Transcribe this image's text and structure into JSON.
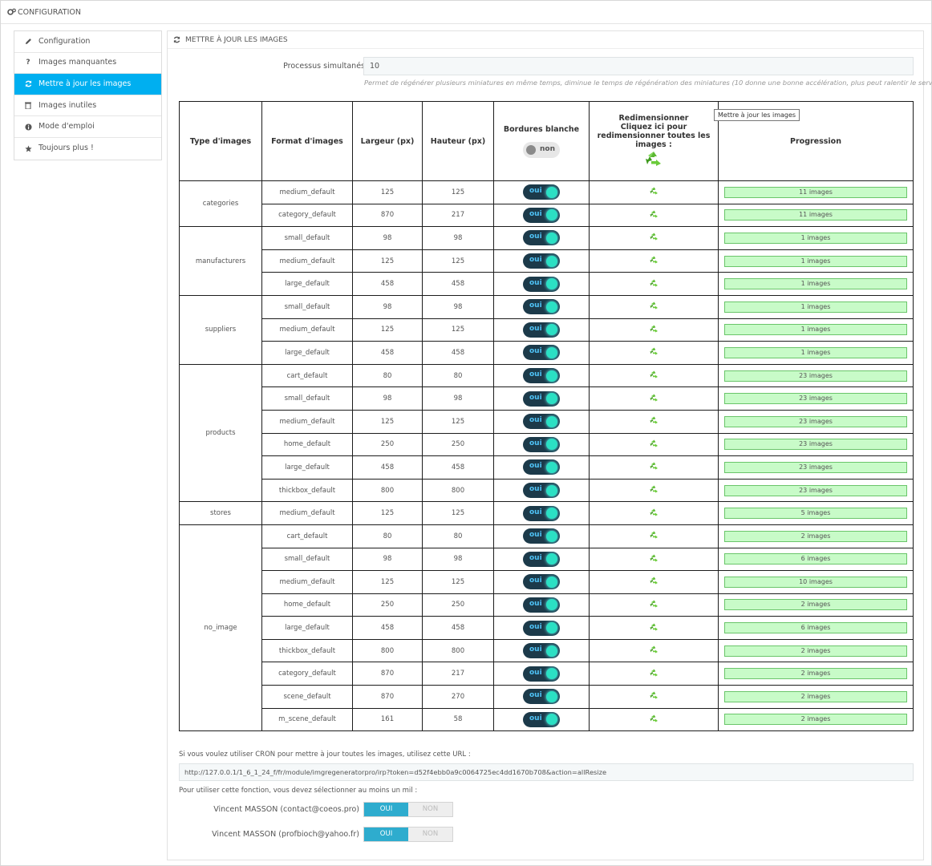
{
  "header": {
    "title": "CONFIGURATION",
    "icon": "gears-icon"
  },
  "sidebar": {
    "items": [
      {
        "label": "Configuration",
        "icon": "pencil-icon",
        "active": false
      },
      {
        "label": "Images manquantes",
        "icon": "question-icon",
        "active": false
      },
      {
        "label": "Mettre à jour les images",
        "icon": "refresh-icon",
        "active": true
      },
      {
        "label": "Images inutiles",
        "icon": "trash-icon",
        "active": false
      },
      {
        "label": "Mode d'emploi",
        "icon": "info-icon",
        "active": false
      },
      {
        "label": "Toujours plus !",
        "icon": "star-icon",
        "active": false
      }
    ]
  },
  "panel": {
    "title": "METTRE À JOUR LES IMAGES",
    "process_label": "Processus simultanés",
    "process_value": "10",
    "process_help": "Permet de régénérer plusieurs miniatures en même temps, diminue le temps de régénération des miniatures (10 donne une bonne accélération, plus peut ralentir le serveur)"
  },
  "table": {
    "headers": {
      "type": "Type d'images",
      "format": "Format d'images",
      "width": "Largeur (px)",
      "height": "Hauteur (px)",
      "borders": "Bordures blanche",
      "resize_line1": "Redimensionner",
      "resize_line2": "Cliquez ici pour redimensionner toutes les images :",
      "progress": "Progression"
    },
    "header_toggle": "non",
    "toggle_on": "oui",
    "tooltip": "Mettre à jour les images",
    "groups": [
      {
        "type": "categories",
        "rows": [
          {
            "format": "medium_default",
            "width": "125",
            "height": "125",
            "progress": "11 images"
          },
          {
            "format": "category_default",
            "width": "870",
            "height": "217",
            "progress": "11 images"
          }
        ]
      },
      {
        "type": "manufacturers",
        "rows": [
          {
            "format": "small_default",
            "width": "98",
            "height": "98",
            "progress": "1 images"
          },
          {
            "format": "medium_default",
            "width": "125",
            "height": "125",
            "progress": "1 images"
          },
          {
            "format": "large_default",
            "width": "458",
            "height": "458",
            "progress": "1 images"
          }
        ]
      },
      {
        "type": "suppliers",
        "rows": [
          {
            "format": "small_default",
            "width": "98",
            "height": "98",
            "progress": "1 images"
          },
          {
            "format": "medium_default",
            "width": "125",
            "height": "125",
            "progress": "1 images"
          },
          {
            "format": "large_default",
            "width": "458",
            "height": "458",
            "progress": "1 images"
          }
        ]
      },
      {
        "type": "products",
        "rows": [
          {
            "format": "cart_default",
            "width": "80",
            "height": "80",
            "progress": "23 images"
          },
          {
            "format": "small_default",
            "width": "98",
            "height": "98",
            "progress": "23 images"
          },
          {
            "format": "medium_default",
            "width": "125",
            "height": "125",
            "progress": "23 images"
          },
          {
            "format": "home_default",
            "width": "250",
            "height": "250",
            "progress": "23 images"
          },
          {
            "format": "large_default",
            "width": "458",
            "height": "458",
            "progress": "23 images"
          },
          {
            "format": "thickbox_default",
            "width": "800",
            "height": "800",
            "progress": "23 images"
          }
        ]
      },
      {
        "type": "stores",
        "rows": [
          {
            "format": "medium_default",
            "width": "125",
            "height": "125",
            "progress": "5 images"
          }
        ]
      },
      {
        "type": "no_image",
        "rows": [
          {
            "format": "cart_default",
            "width": "80",
            "height": "80",
            "progress": "2 images"
          },
          {
            "format": "small_default",
            "width": "98",
            "height": "98",
            "progress": "6 images"
          },
          {
            "format": "medium_default",
            "width": "125",
            "height": "125",
            "progress": "10 images"
          },
          {
            "format": "home_default",
            "width": "250",
            "height": "250",
            "progress": "2 images"
          },
          {
            "format": "large_default",
            "width": "458",
            "height": "458",
            "progress": "6 images"
          },
          {
            "format": "thickbox_default",
            "width": "800",
            "height": "800",
            "progress": "2 images"
          },
          {
            "format": "category_default",
            "width": "870",
            "height": "217",
            "progress": "2 images"
          },
          {
            "format": "scene_default",
            "width": "870",
            "height": "270",
            "progress": "2 images"
          },
          {
            "format": "m_scene_default",
            "width": "161",
            "height": "58",
            "progress": "2 images"
          }
        ]
      }
    ]
  },
  "cron": {
    "text": "Si vous voulez utiliser CRON pour mettre à jour toutes les images, utilisez cette URL :",
    "url": "http://127.0.0.1/1_6_1_24_f/fr/module/imgregeneratorpro/irp?token=d52f4ebb0a9c0064725ec4dd1670b708&action=allResize",
    "note": "Pour utiliser cette fonction, vous devez sélectionner au moins un mil :"
  },
  "mails": [
    {
      "label": "Vincent MASSON (contact@coeos.pro)",
      "on": "OUI",
      "off": "NON"
    },
    {
      "label": "Vincent MASSON (profbioch@yahoo.fr)",
      "on": "OUI",
      "off": "NON"
    }
  ],
  "colors": {
    "accent": "#00aff0",
    "progress_bg": "#c8fbc8",
    "toggle_on": "#2eacce"
  }
}
